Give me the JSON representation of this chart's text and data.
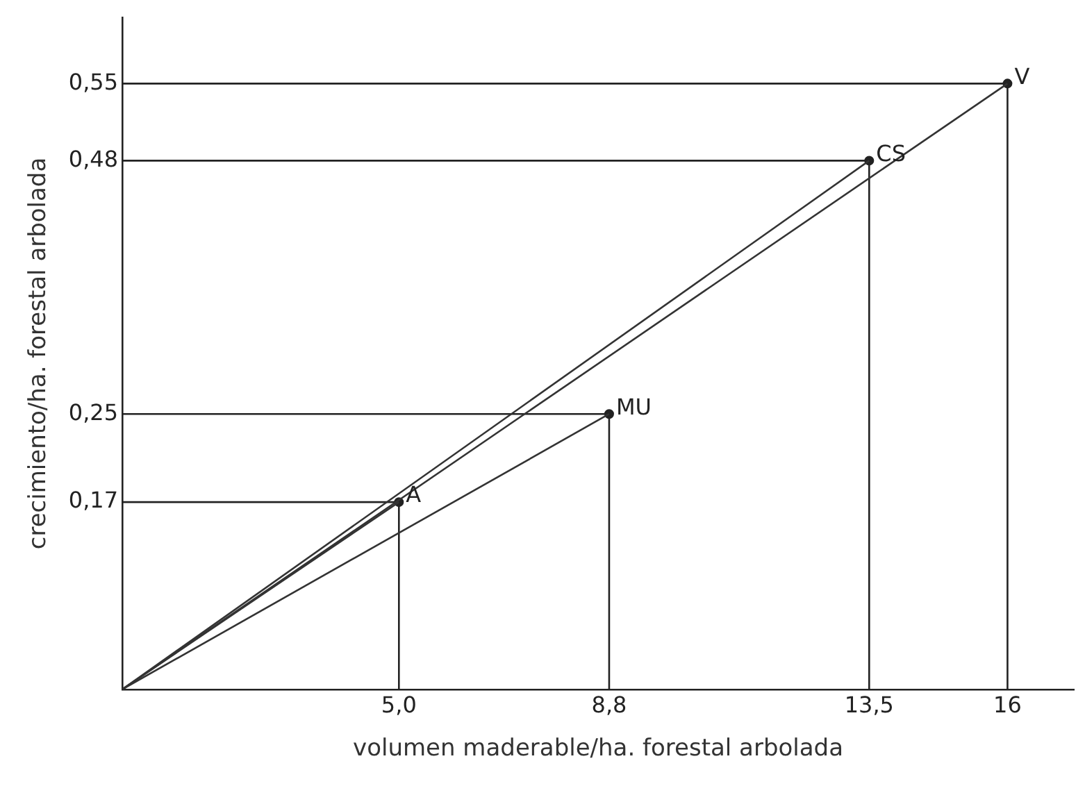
{
  "chart_data": {
    "type": "scatter",
    "xlabel": "volumen maderable/ha. forestal arbolada",
    "ylabel": "crecimiento/ha. forestal arbolada",
    "xlim": [
      0,
      17.2
    ],
    "ylim": [
      0,
      0.61
    ],
    "xticks": [
      {
        "value": 5.0,
        "label": "5,0"
      },
      {
        "value": 8.8,
        "label": "8,8"
      },
      {
        "value": 13.5,
        "label": "13,5"
      },
      16
    ],
    "yticks": [
      {
        "value": 0.17,
        "label": "0,17"
      },
      {
        "value": 0.25,
        "label": "0,25"
      },
      {
        "value": 0.48,
        "label": "0,48"
      },
      {
        "value": 0.55,
        "label": "0,55"
      }
    ],
    "grid": false,
    "legend": false,
    "line_style": "solid",
    "series": [
      {
        "type": "line",
        "color": "#333333",
        "x": [
          0,
          5.0
        ],
        "values": [
          0,
          0.17
        ]
      },
      {
        "type": "line",
        "color": "#333333",
        "x": [
          0,
          8.8
        ],
        "values": [
          0,
          0.25
        ]
      },
      {
        "type": "line",
        "color": "#333333",
        "x": [
          0,
          13.5
        ],
        "values": [
          0,
          0.48
        ]
      },
      {
        "type": "line",
        "color": "#333333",
        "x": [
          0,
          16
        ],
        "values": [
          0,
          0.55
        ]
      },
      {
        "type": "line",
        "color": "#222222",
        "x": [
          0,
          5.0,
          5.0
        ],
        "values": [
          0.17,
          0.17,
          0
        ]
      },
      {
        "type": "line",
        "color": "#222222",
        "x": [
          0,
          8.8,
          8.8
        ],
        "values": [
          0.25,
          0.25,
          0
        ]
      },
      {
        "type": "line",
        "color": "#222222",
        "x": [
          0,
          13.5,
          13.5
        ],
        "values": [
          0.48,
          0.48,
          0
        ]
      },
      {
        "type": "line",
        "color": "#222222",
        "x": [
          0,
          16,
          16
        ],
        "values": [
          0.55,
          0.55,
          0
        ]
      },
      {
        "type": "scatter",
        "marker": "circle",
        "color": "#222222",
        "x": [
          5.0,
          8.8,
          13.5,
          16
        ],
        "values": [
          0.17,
          0.25,
          0.48,
          0.55
        ]
      }
    ],
    "annotations": [
      {
        "text": "A",
        "x": 5.0,
        "y": 0.17
      },
      {
        "text": "MU",
        "x": 8.8,
        "y": 0.25
      },
      {
        "text": "CS",
        "x": 13.5,
        "y": 0.48
      },
      {
        "text": "V",
        "x": 16,
        "y": 0.55
      }
    ]
  }
}
